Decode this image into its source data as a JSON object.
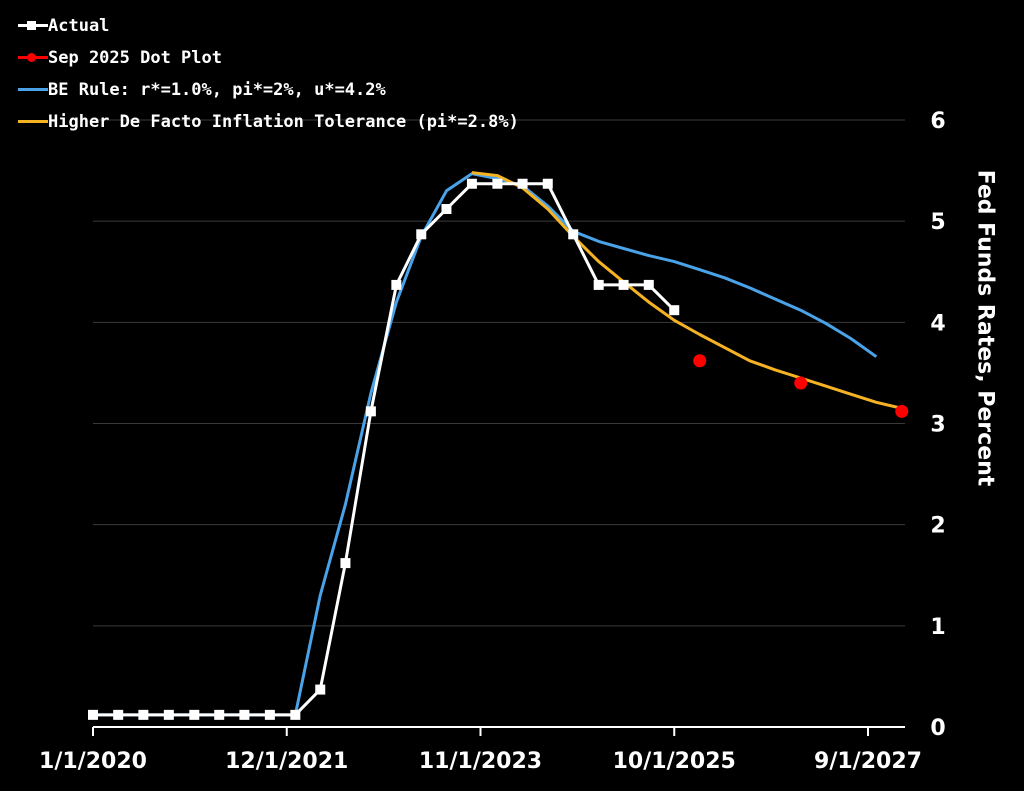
{
  "chart_data": {
    "type": "line",
    "title": "",
    "xlabel": "",
    "ylabel": "Fed Funds Rates, Percent",
    "ylim": [
      0,
      6
    ],
    "yticks": [
      "0",
      "1",
      "2",
      "3",
      "4",
      "5",
      "6"
    ],
    "xticks": [
      "1/1/2020",
      "12/1/2021",
      "11/1/2023",
      "10/1/2025",
      "9/1/2027"
    ],
    "xrange": [
      "2020-01-01",
      "2027-10-01"
    ],
    "grid": "horizontal",
    "legend_position": "top-left",
    "series": [
      {
        "name": "Actual",
        "color": "#ffffff",
        "marker": "square",
        "points": [
          [
            "2020-01-01",
            0.12
          ],
          [
            "2020-04-01",
            0.12
          ],
          [
            "2020-07-01",
            0.12
          ],
          [
            "2020-10-01",
            0.12
          ],
          [
            "2021-01-01",
            0.12
          ],
          [
            "2021-04-01",
            0.12
          ],
          [
            "2021-07-01",
            0.12
          ],
          [
            "2021-10-01",
            0.12
          ],
          [
            "2022-01-01",
            0.12
          ],
          [
            "2022-04-01",
            0.37
          ],
          [
            "2022-07-01",
            1.62
          ],
          [
            "2022-10-01",
            3.12
          ],
          [
            "2023-01-01",
            4.37
          ],
          [
            "2023-04-01",
            4.87
          ],
          [
            "2023-07-01",
            5.12
          ],
          [
            "2023-10-01",
            5.37
          ],
          [
            "2024-01-01",
            5.37
          ],
          [
            "2024-04-01",
            5.37
          ],
          [
            "2024-07-01",
            5.37
          ],
          [
            "2024-10-01",
            4.87
          ],
          [
            "2025-01-01",
            4.37
          ],
          [
            "2025-04-01",
            4.37
          ],
          [
            "2025-07-01",
            4.37
          ],
          [
            "2025-10-01",
            4.12
          ]
        ]
      },
      {
        "name": "Sep 2025 Dot Plot",
        "color": "#ff0000",
        "marker": "circle",
        "points": [
          [
            "2026-01-01",
            3.62
          ],
          [
            "2027-01-01",
            3.4
          ],
          [
            "2028-01-01",
            3.12
          ]
        ]
      },
      {
        "name": "BE Rule: r*=1.0%, pi*=2%, u*=4.2%",
        "color": "#4aa3e8",
        "points": [
          [
            "2020-01-01",
            0.12
          ],
          [
            "2022-01-01",
            0.12
          ],
          [
            "2022-04-01",
            1.3
          ],
          [
            "2022-07-01",
            2.2
          ],
          [
            "2022-10-01",
            3.3
          ],
          [
            "2023-01-01",
            4.2
          ],
          [
            "2023-04-01",
            4.85
          ],
          [
            "2023-07-01",
            5.3
          ],
          [
            "2023-10-01",
            5.47
          ],
          [
            "2024-01-01",
            5.42
          ],
          [
            "2024-04-01",
            5.35
          ],
          [
            "2024-07-01",
            5.15
          ],
          [
            "2024-10-01",
            4.9
          ],
          [
            "2025-01-01",
            4.8
          ],
          [
            "2025-04-01",
            4.73
          ],
          [
            "2025-07-01",
            4.66
          ],
          [
            "2025-10-01",
            4.6
          ],
          [
            "2026-01-01",
            4.52
          ],
          [
            "2026-04-01",
            4.44
          ],
          [
            "2026-07-01",
            4.34
          ],
          [
            "2026-10-01",
            4.23
          ],
          [
            "2027-01-01",
            4.12
          ],
          [
            "2027-04-01",
            3.99
          ],
          [
            "2027-07-01",
            3.84
          ],
          [
            "2027-10-01",
            3.66
          ]
        ]
      },
      {
        "name": "Higher De Facto Inflation Tolerance (pi*=2.8%)",
        "color": "#f5b324",
        "points": [
          [
            "2023-10-01",
            5.48
          ],
          [
            "2024-01-01",
            5.45
          ],
          [
            "2024-04-01",
            5.33
          ],
          [
            "2024-07-01",
            5.12
          ],
          [
            "2024-10-01",
            4.85
          ],
          [
            "2025-01-01",
            4.6
          ],
          [
            "2025-04-01",
            4.4
          ],
          [
            "2025-07-01",
            4.2
          ],
          [
            "2025-10-01",
            4.02
          ],
          [
            "2026-01-01",
            3.88
          ],
          [
            "2026-04-01",
            3.75
          ],
          [
            "2026-07-01",
            3.62
          ],
          [
            "2026-10-01",
            3.53
          ],
          [
            "2027-01-01",
            3.45
          ],
          [
            "2027-04-01",
            3.37
          ],
          [
            "2027-07-01",
            3.29
          ],
          [
            "2027-10-01",
            3.21
          ],
          [
            "2028-01-01",
            3.15
          ]
        ]
      }
    ]
  }
}
